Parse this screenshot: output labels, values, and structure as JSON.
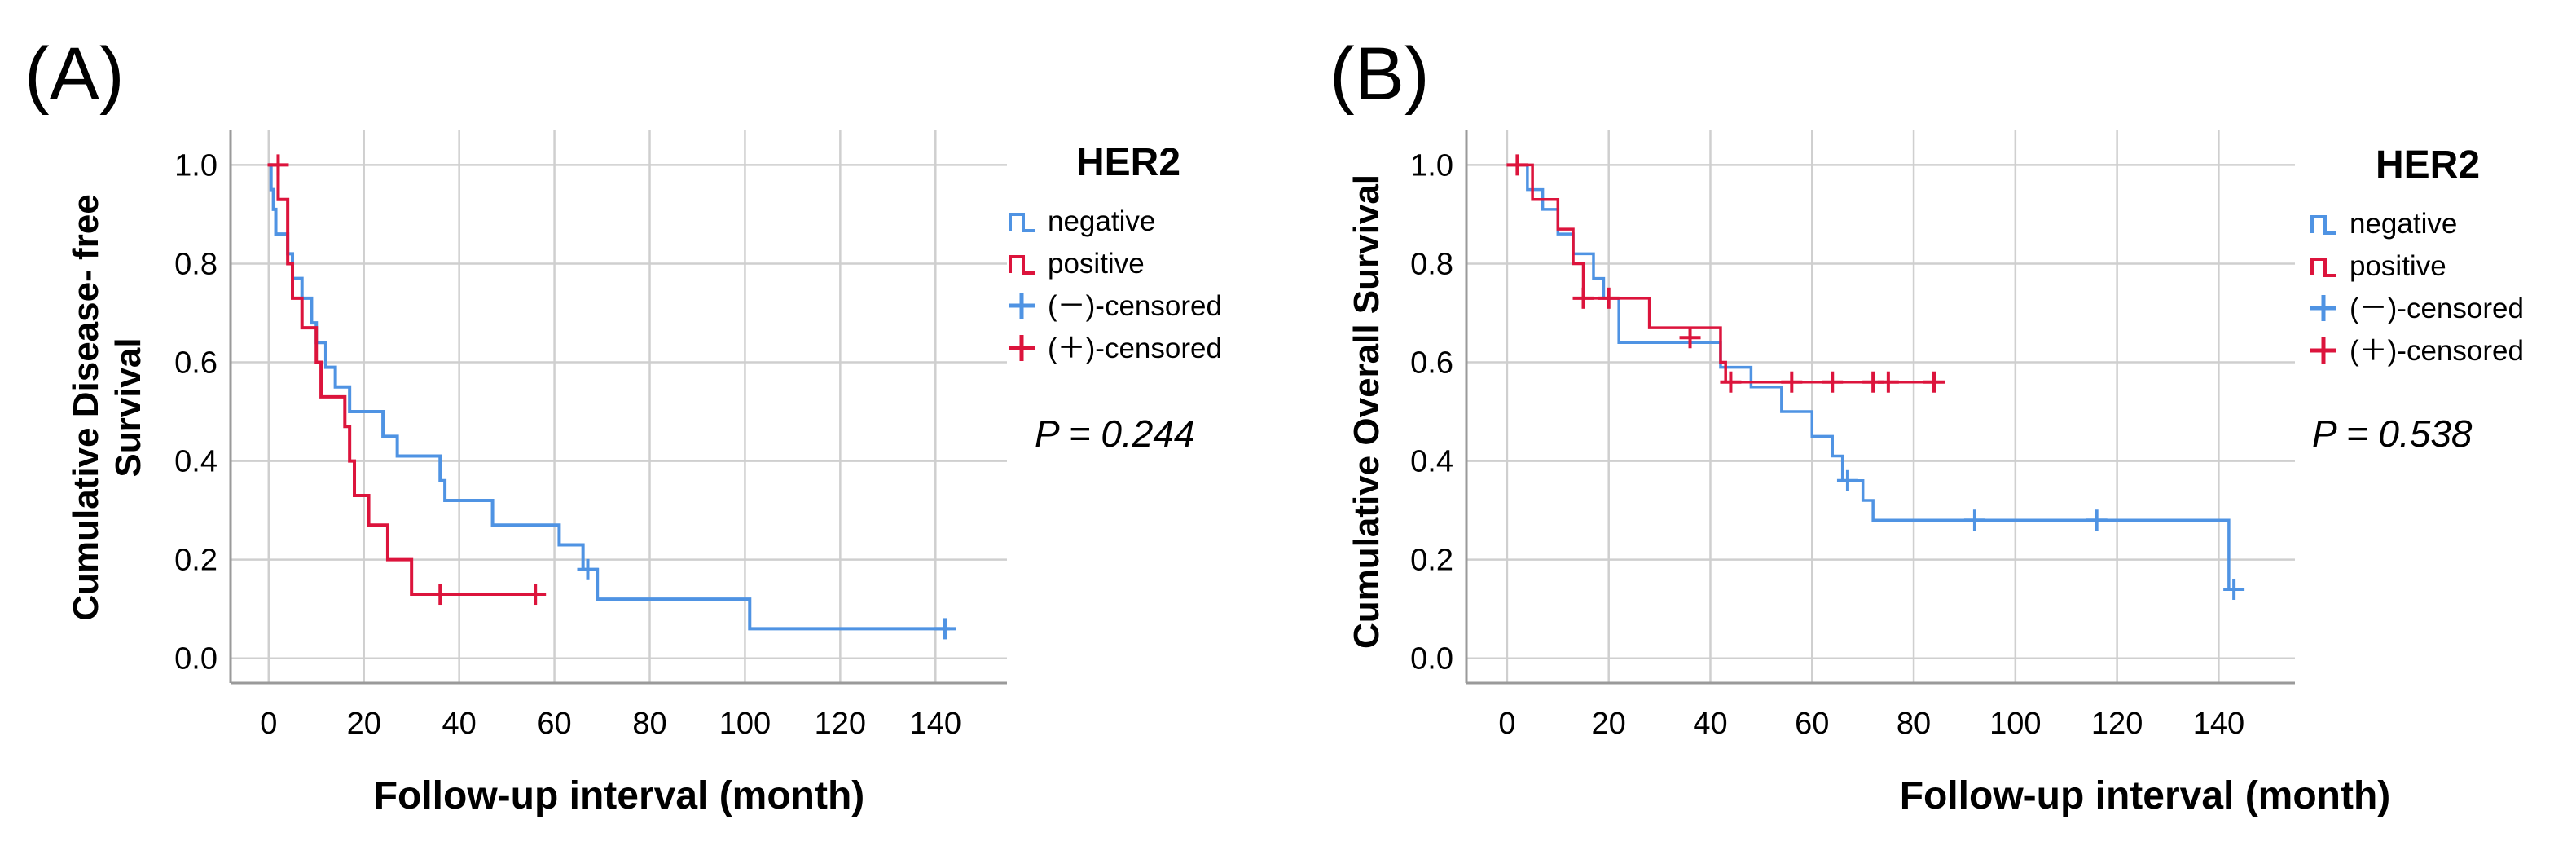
{
  "colors": {
    "negative": "#4f93e3",
    "positive": "#dc143c"
  },
  "chart_data": [
    {
      "type": "step",
      "panel_label": "(A)",
      "legend_title": "HER2",
      "legend": [
        "negative",
        "positive",
        "(－)-censored",
        "(＋)-censored"
      ],
      "p_value": "P = 0.244",
      "xlabel": "Follow-up interval (month)",
      "ylabel_lines": [
        "Cumulative Disease- free",
        "Survival"
      ],
      "xlim": [
        -8,
        155
      ],
      "ylim": [
        -0.05,
        1.07
      ],
      "xticks": [
        0,
        20,
        40,
        60,
        80,
        100,
        120,
        140
      ],
      "yticks": [
        0.0,
        0.2,
        0.4,
        0.6,
        0.8,
        1.0
      ],
      "series": [
        {
          "name": "negative",
          "steps": [
            [
              0,
              1.0
            ],
            [
              0.5,
              0.95
            ],
            [
              1,
              0.91
            ],
            [
              1.5,
              0.86
            ],
            [
              4,
              0.82
            ],
            [
              5,
              0.77
            ],
            [
              7,
              0.73
            ],
            [
              9,
              0.68
            ],
            [
              10,
              0.64
            ],
            [
              12,
              0.59
            ],
            [
              14,
              0.55
            ],
            [
              17,
              0.5
            ],
            [
              24,
              0.45
            ],
            [
              27,
              0.41
            ],
            [
              36,
              0.36
            ],
            [
              37,
              0.32
            ],
            [
              47,
              0.27
            ],
            [
              61,
              0.23
            ],
            [
              66,
              0.18
            ],
            [
              69,
              0.12
            ],
            [
              101,
              0.06
            ],
            [
              143,
              0.06
            ]
          ],
          "censored": [
            [
              67,
              0.18
            ],
            [
              142,
              0.06
            ]
          ]
        },
        {
          "name": "positive",
          "steps": [
            [
              0,
              1.0
            ],
            [
              2,
              0.93
            ],
            [
              4,
              0.8
            ],
            [
              5,
              0.73
            ],
            [
              7,
              0.67
            ],
            [
              10,
              0.6
            ],
            [
              11,
              0.53
            ],
            [
              16,
              0.47
            ],
            [
              17,
              0.4
            ],
            [
              18,
              0.33
            ],
            [
              21,
              0.27
            ],
            [
              25,
              0.2
            ],
            [
              30,
              0.13
            ],
            [
              57,
              0.13
            ]
          ],
          "censored": [
            [
              2,
              1.0
            ],
            [
              36,
              0.13
            ],
            [
              56,
              0.13
            ]
          ]
        }
      ]
    },
    {
      "type": "step",
      "panel_label": "(B)",
      "legend_title": "HER2",
      "legend": [
        "negative",
        "positive",
        "(－)-censored",
        "(＋)-censored"
      ],
      "p_value": "P = 0.538",
      "xlabel": "Follow-up interval (month)",
      "ylabel_lines": [
        "Cumulative Overall Survival"
      ],
      "xlim": [
        -8,
        155
      ],
      "ylim": [
        -0.05,
        1.07
      ],
      "xticks": [
        0,
        20,
        40,
        60,
        80,
        100,
        120,
        140
      ],
      "yticks": [
        0.0,
        0.2,
        0.4,
        0.6,
        0.8,
        1.0
      ],
      "series": [
        {
          "name": "negative",
          "steps": [
            [
              0,
              1.0
            ],
            [
              4,
              0.95
            ],
            [
              7,
              0.91
            ],
            [
              10,
              0.86
            ],
            [
              13,
              0.82
            ],
            [
              17,
              0.77
            ],
            [
              19,
              0.73
            ],
            [
              22,
              0.64
            ],
            [
              42,
              0.59
            ],
            [
              48,
              0.55
            ],
            [
              54,
              0.5
            ],
            [
              60,
              0.45
            ],
            [
              64,
              0.41
            ],
            [
              66,
              0.36
            ],
            [
              70,
              0.32
            ],
            [
              72,
              0.28
            ],
            [
              142,
              0.14
            ],
            [
              144,
              0.14
            ]
          ],
          "censored": [
            [
              67,
              0.36
            ],
            [
              92,
              0.28
            ],
            [
              116,
              0.28
            ],
            [
              143,
              0.14
            ]
          ]
        },
        {
          "name": "positive",
          "steps": [
            [
              0,
              1.0
            ],
            [
              5,
              0.93
            ],
            [
              10,
              0.87
            ],
            [
              13,
              0.8
            ],
            [
              15,
              0.73
            ],
            [
              28,
              0.67
            ],
            [
              42,
              0.6
            ],
            [
              43,
              0.56
            ],
            [
              84,
              0.56
            ]
          ],
          "censored": [
            [
              2,
              1.0
            ],
            [
              15,
              0.73
            ],
            [
              20,
              0.73
            ],
            [
              36,
              0.65
            ],
            [
              44,
              0.56
            ],
            [
              56,
              0.56
            ],
            [
              64,
              0.56
            ],
            [
              72,
              0.56
            ],
            [
              75,
              0.56
            ],
            [
              84,
              0.56
            ]
          ]
        }
      ]
    }
  ]
}
